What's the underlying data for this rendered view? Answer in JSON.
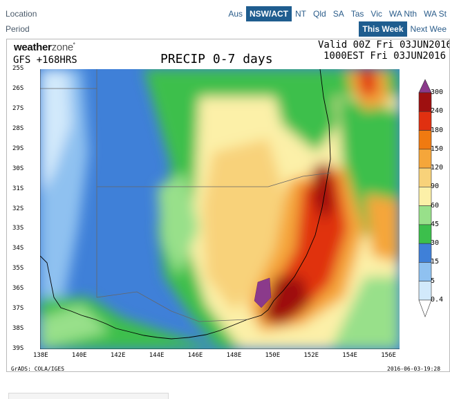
{
  "location": {
    "label": "Location",
    "tabs": [
      {
        "label": "Aus",
        "active": false
      },
      {
        "label": "NSW/ACT",
        "active": true
      },
      {
        "label": "NT",
        "active": false
      },
      {
        "label": "Qld",
        "active": false
      },
      {
        "label": "SA",
        "active": false
      },
      {
        "label": "Tas",
        "active": false
      },
      {
        "label": "Vic",
        "active": false
      },
      {
        "label": "WA Nth",
        "active": false
      },
      {
        "label": "WA St",
        "active": false
      }
    ]
  },
  "period": {
    "label": "Period",
    "tabs": [
      {
        "label": "This Week",
        "active": true
      },
      {
        "label": "Next Wee",
        "active": false
      }
    ]
  },
  "map": {
    "logo_main": "weather",
    "logo_accent": "zone",
    "model": "GFS +168HRS",
    "title": "PRECIP 0-7 days",
    "valid_line1": "Valid 00Z Fri 03JUN2016",
    "valid_line2": "1000EST Fri 03JUN2016",
    "lat_labels": [
      "25S",
      "26S",
      "27S",
      "28S",
      "29S",
      "30S",
      "31S",
      "32S",
      "33S",
      "34S",
      "35S",
      "36S",
      "37S",
      "38S",
      "39S"
    ],
    "lon_labels": [
      "138E",
      "140E",
      "142E",
      "144E",
      "146E",
      "148E",
      "150E",
      "152E",
      "154E",
      "156E"
    ],
    "credit": "GrADS: COLA/IGES",
    "timestamp": "2016-06-03-19:28",
    "legend_levels": [
      "300",
      "240",
      "180",
      "150",
      "120",
      "90",
      "60",
      "45",
      "30",
      "15",
      "5",
      "0.4"
    ],
    "legend_colors": [
      "#8b3a8b",
      "#9e1010",
      "#e03010",
      "#f07a10",
      "#f5a63a",
      "#f8d27a",
      "#fcf0a8",
      "#98e08a",
      "#3cbf4c",
      "#3f80d8",
      "#8fc1f0",
      "#d2e9fb",
      "#ffffff"
    ]
  }
}
